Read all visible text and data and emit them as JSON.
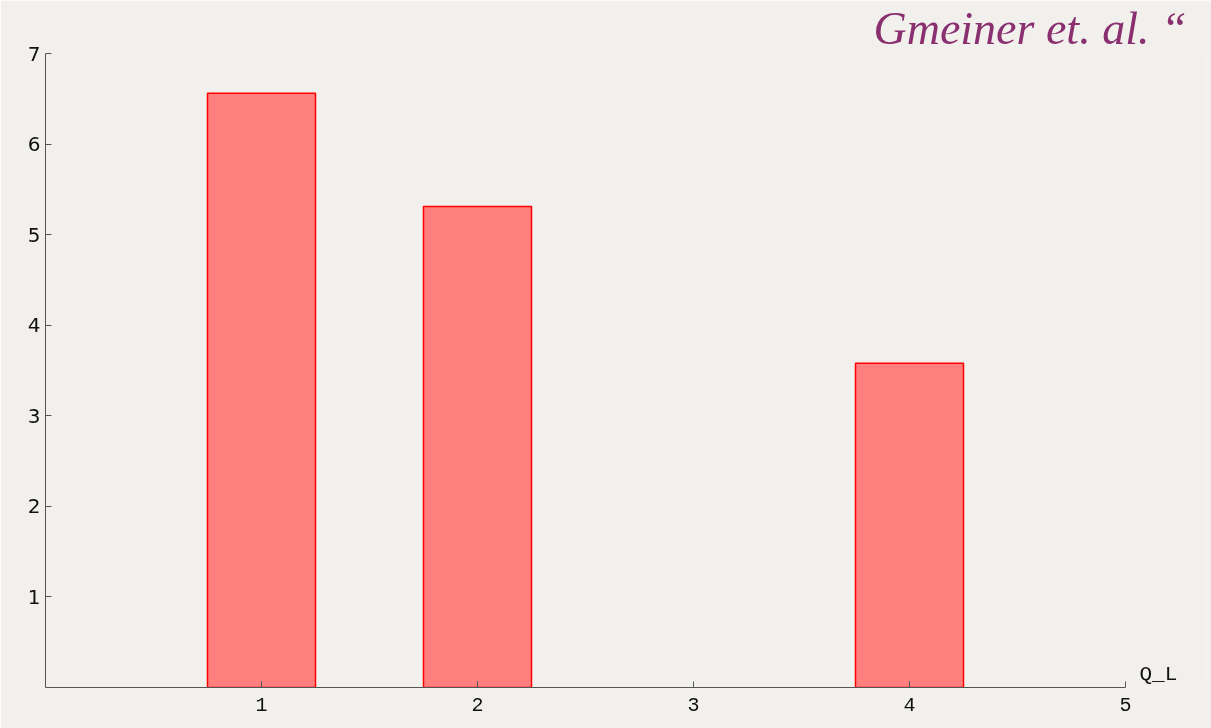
{
  "chart_data": {
    "type": "bar",
    "title": "Gmeiner et. al. “",
    "xlabel": "Q_L",
    "x": [
      1,
      2,
      4
    ],
    "values": [
      6.56,
      5.31,
      3.58
    ],
    "color": "#ff7f7f",
    "xlim": [
      0,
      5
    ],
    "xticks": [
      1,
      2,
      3,
      4,
      5
    ],
    "ylim": [
      0,
      7
    ],
    "yticks": [
      1,
      2,
      3,
      4,
      5,
      6,
      7
    ],
    "grid": false
  }
}
